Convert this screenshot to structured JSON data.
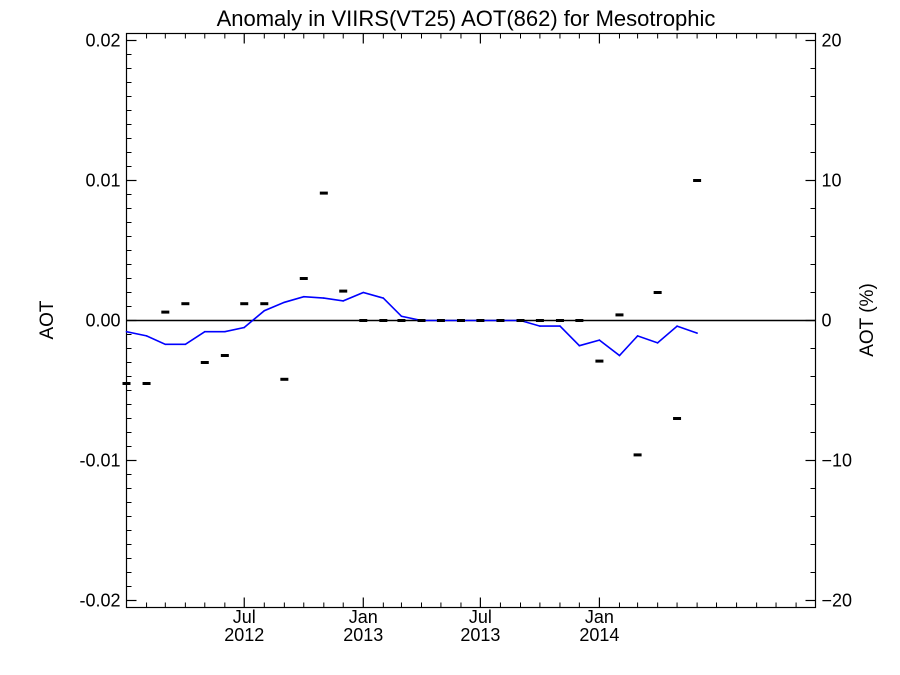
{
  "chart_data": {
    "type": "line",
    "title": "Anomaly in VIIRS(VT25) AOT(862) for Mesotrophic",
    "ylabel": "AOT",
    "ylabel_right": "AOT (%)",
    "ylim": [
      -0.0205,
      0.0205
    ],
    "ylim_right": [
      -20.5,
      20.5
    ],
    "xlim": [
      "2012-01-01",
      "2014-12-01"
    ],
    "y_ticks": [
      "0.02",
      "0.01",
      "0.00",
      "-0.01",
      "-0.02"
    ],
    "y_tick_values": [
      0.02,
      0.01,
      0.0,
      -0.01,
      -0.02
    ],
    "y_ticks_right": [
      "20",
      "10",
      "0",
      "−10",
      "−20"
    ],
    "y_tick_values_right": [
      20,
      10,
      0,
      -10,
      -20
    ],
    "x_ticks": [
      {
        "date": "2012-07-01",
        "month": "Jul",
        "year": "2012"
      },
      {
        "date": "2013-01-01",
        "month": "Jan",
        "year": "2013"
      },
      {
        "date": "2013-07-01",
        "month": "Jul",
        "year": "2013"
      },
      {
        "date": "2014-01-01",
        "month": "Jan",
        "year": "2014"
      }
    ],
    "zero_line": true,
    "series": [
      {
        "style": "line",
        "color": "#0000ff",
        "points": [
          {
            "x": "2012-01-01",
            "y": -0.0008
          },
          {
            "x": "2012-02-01",
            "y": -0.0011
          },
          {
            "x": "2012-03-01",
            "y": -0.0017
          },
          {
            "x": "2012-04-01",
            "y": -0.0017
          },
          {
            "x": "2012-05-01",
            "y": -0.0008
          },
          {
            "x": "2012-06-01",
            "y": -0.0008
          },
          {
            "x": "2012-07-01",
            "y": -0.0005
          },
          {
            "x": "2012-08-01",
            "y": 0.0007
          },
          {
            "x": "2012-09-01",
            "y": 0.0013
          },
          {
            "x": "2012-10-01",
            "y": 0.0017
          },
          {
            "x": "2012-11-01",
            "y": 0.0016
          },
          {
            "x": "2012-12-01",
            "y": 0.0014
          },
          {
            "x": "2013-01-01",
            "y": 0.002
          },
          {
            "x": "2013-02-01",
            "y": 0.0016
          },
          {
            "x": "2013-03-01",
            "y": 0.0003
          },
          {
            "x": "2013-04-01",
            "y": 0.0
          },
          {
            "x": "2013-05-01",
            "y": 0.0
          },
          {
            "x": "2013-06-01",
            "y": 0.0
          },
          {
            "x": "2013-07-01",
            "y": 0.0
          },
          {
            "x": "2013-08-01",
            "y": 0.0
          },
          {
            "x": "2013-09-01",
            "y": 0.0
          },
          {
            "x": "2013-10-01",
            "y": -0.0004
          },
          {
            "x": "2013-11-01",
            "y": -0.0004
          },
          {
            "x": "2013-12-01",
            "y": -0.0018
          },
          {
            "x": "2014-01-01",
            "y": -0.0014
          },
          {
            "x": "2014-02-01",
            "y": -0.0025
          },
          {
            "x": "2014-03-01",
            "y": -0.0011
          },
          {
            "x": "2014-04-01",
            "y": -0.0016
          },
          {
            "x": "2014-05-01",
            "y": -0.0004
          },
          {
            "x": "2014-06-01",
            "y": -0.0009
          }
        ]
      },
      {
        "style": "dash-markers",
        "color": "#000000",
        "points": [
          {
            "x": "2012-01-01",
            "y": -0.0045
          },
          {
            "x": "2012-02-01",
            "y": -0.0045
          },
          {
            "x": "2012-03-01",
            "y": 0.0006
          },
          {
            "x": "2012-04-01",
            "y": 0.0012
          },
          {
            "x": "2012-05-01",
            "y": -0.003
          },
          {
            "x": "2012-06-01",
            "y": -0.0025
          },
          {
            "x": "2012-07-01",
            "y": 0.0012
          },
          {
            "x": "2012-08-01",
            "y": 0.0012
          },
          {
            "x": "2012-09-01",
            "y": -0.0042
          },
          {
            "x": "2012-10-01",
            "y": 0.003
          },
          {
            "x": "2012-11-01",
            "y": 0.0091
          },
          {
            "x": "2012-12-01",
            "y": 0.0021
          },
          {
            "x": "2013-01-01",
            "y": 0.0
          },
          {
            "x": "2013-02-01",
            "y": 0.0
          },
          {
            "x": "2013-03-01",
            "y": 0.0
          },
          {
            "x": "2013-04-01",
            "y": 0.0
          },
          {
            "x": "2013-05-01",
            "y": 0.0
          },
          {
            "x": "2013-06-01",
            "y": 0.0
          },
          {
            "x": "2013-07-01",
            "y": 0.0
          },
          {
            "x": "2013-08-01",
            "y": 0.0
          },
          {
            "x": "2013-09-01",
            "y": 0.0
          },
          {
            "x": "2013-10-01",
            "y": 0.0
          },
          {
            "x": "2013-11-01",
            "y": 0.0
          },
          {
            "x": "2013-12-01",
            "y": 0.0
          },
          {
            "x": "2014-01-01",
            "y": -0.0029
          },
          {
            "x": "2014-02-01",
            "y": 0.0004
          },
          {
            "x": "2014-03-01",
            "y": -0.0096
          },
          {
            "x": "2014-04-01",
            "y": 0.002
          },
          {
            "x": "2014-05-01",
            "y": -0.007
          },
          {
            "x": "2014-06-01",
            "y": 0.01
          }
        ]
      }
    ]
  }
}
